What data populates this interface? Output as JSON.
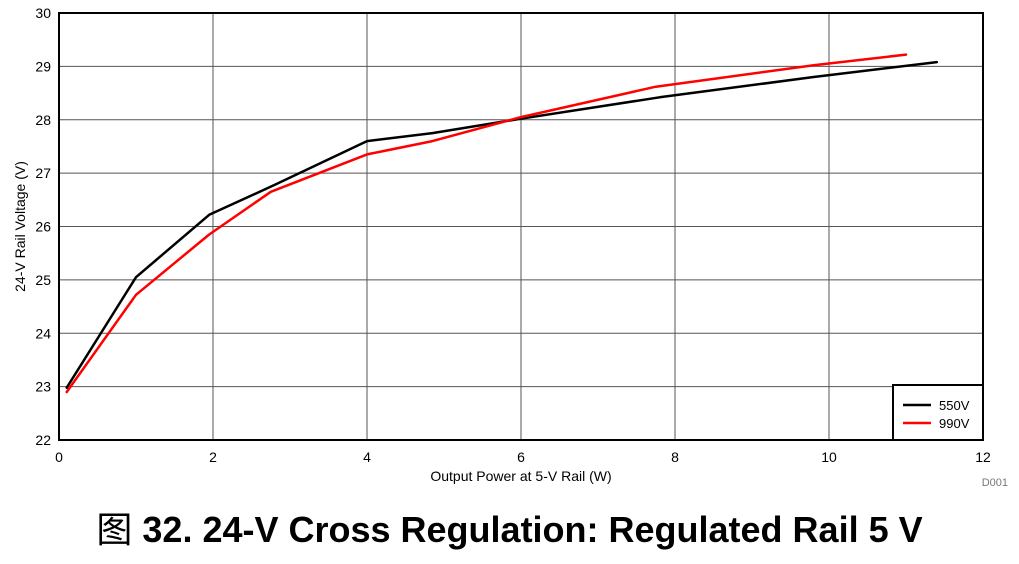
{
  "chart_data": {
    "type": "line",
    "title": "",
    "xlabel": "Output Power at 5-V Rail (W)",
    "ylabel": "24-V Rail Voltage (V)",
    "xlim": [
      0,
      12
    ],
    "ylim": [
      22,
      30
    ],
    "xticks": [
      "0",
      "2",
      "4",
      "6",
      "8",
      "10",
      "12"
    ],
    "yticks": [
      "22",
      "23",
      "24",
      "25",
      "26",
      "27",
      "28",
      "29",
      "30"
    ],
    "grid": true,
    "legend_position": "bottom-right",
    "series": [
      {
        "name": "550V",
        "color": "#000000",
        "x": [
          0.1,
          1.0,
          1.95,
          2.8,
          4.0,
          4.85,
          6.0,
          7.8,
          9.8,
          11.4
        ],
        "y": [
          22.98,
          25.05,
          26.22,
          26.78,
          27.6,
          27.75,
          28.02,
          28.42,
          28.8,
          29.08
        ]
      },
      {
        "name": "990V",
        "color": "#ff0000",
        "x": [
          0.1,
          1.0,
          1.95,
          2.75,
          4.0,
          4.85,
          6.0,
          7.75,
          9.8,
          11.0
        ],
        "y": [
          22.9,
          24.72,
          25.85,
          26.65,
          27.35,
          27.6,
          28.05,
          28.62,
          29.02,
          29.22
        ]
      }
    ],
    "figure_id": "D001"
  },
  "caption": {
    "prefix": "图",
    "text": "32. 24-V Cross Regulation: Regulated Rail 5 V"
  }
}
